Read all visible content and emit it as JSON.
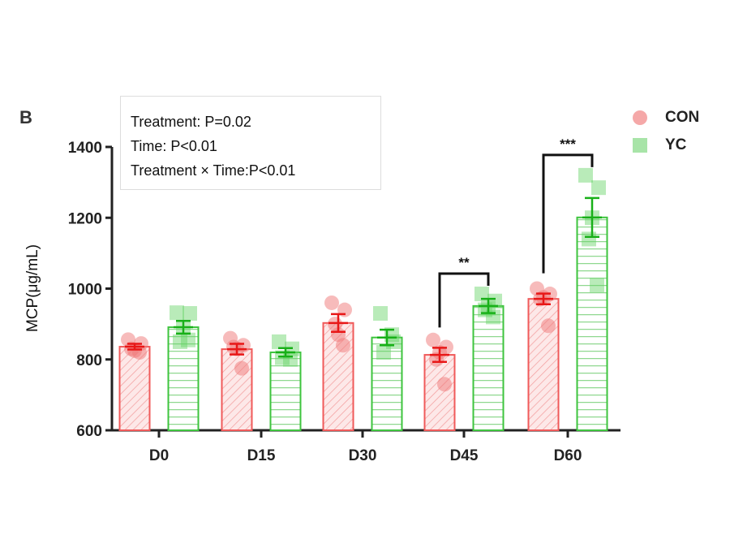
{
  "panel_label": "B",
  "stats": [
    "Treatment: P=0.02",
    "Time: P<0.01",
    "Treatment × Time:P<0.01"
  ],
  "chart_data": {
    "type": "bar",
    "ylabel": "MCP(μg/mL)",
    "xlabel": "",
    "ylim": [
      600,
      1400
    ],
    "yticks": [
      600,
      800,
      1000,
      1200,
      1400
    ],
    "categories": [
      "D0",
      "D15",
      "D30",
      "D45",
      "D60"
    ],
    "legend_position": "top-right",
    "grid": false,
    "series": [
      {
        "name": "CON",
        "color": "#f07070",
        "marker": "circle",
        "values": [
          836,
          829,
          903,
          813,
          971
        ],
        "sem": [
          8,
          15,
          25,
          20,
          15
        ],
        "points": [
          [
            856,
            845,
            830,
            820,
            825
          ],
          [
            860,
            840,
            835,
            775,
            830
          ],
          [
            960,
            940,
            900,
            840,
            870
          ],
          [
            855,
            835,
            800,
            730,
            820
          ],
          [
            1000,
            985,
            970,
            895,
            975
          ]
        ]
      },
      {
        "name": "YC",
        "color": "#50c850",
        "marker": "square",
        "values": [
          891,
          820,
          862,
          951,
          1201
        ],
        "sem": [
          18,
          12,
          22,
          20,
          55
        ],
        "points": [
          [
            932,
            930,
            850,
            855,
            890
          ],
          [
            850,
            830,
            805,
            800
          ],
          [
            930,
            850,
            820,
            870
          ],
          [
            985,
            965,
            940,
            920,
            945
          ],
          [
            1320,
            1285,
            1140,
            1010,
            1200
          ]
        ]
      }
    ],
    "significance": [
      {
        "category": "D45",
        "label": "**"
      },
      {
        "category": "D60",
        "label": "***"
      }
    ]
  }
}
